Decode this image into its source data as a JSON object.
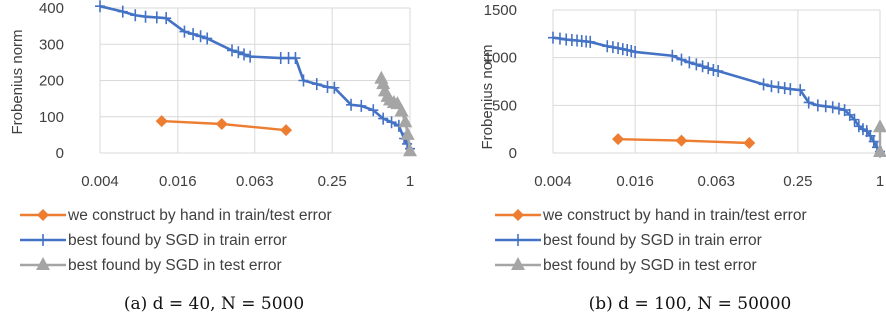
{
  "chart_data": [
    {
      "type": "line",
      "caption": "(a) d = 40, N = 5000",
      "xscale": "log2",
      "xticks": [
        "0.004",
        "0.016",
        "0.063",
        "0.25",
        "1"
      ],
      "xlim": [
        0.004,
        1
      ],
      "ylabel": "Frobenius norm",
      "ylim": [
        0,
        400
      ],
      "yticks": [
        "0",
        "100",
        "200",
        "300",
        "400"
      ],
      "grid": true,
      "legend": "bottom",
      "series": [
        {
          "name": "we construct by hand in train/test error",
          "color": "#ED7D31",
          "marker": "diamond",
          "x": [
            0.012,
            0.035,
            0.11
          ],
          "y": [
            88,
            80,
            63
          ]
        },
        {
          "name": "best found by SGD in train error",
          "color": "#4472C4",
          "marker": "plus",
          "x": [
            0.004,
            0.006,
            0.0075,
            0.009,
            0.011,
            0.013,
            0.018,
            0.021,
            0.024,
            0.027,
            0.042,
            0.047,
            0.052,
            0.058,
            0.1,
            0.115,
            0.13,
            0.15,
            0.19,
            0.23,
            0.26,
            0.35,
            0.42,
            0.52,
            0.62,
            0.72,
            0.82,
            0.9,
            0.95,
            1.0
          ],
          "y": [
            405,
            390,
            380,
            376,
            374,
            372,
            335,
            328,
            322,
            316,
            283,
            278,
            272,
            266,
            262,
            262,
            262,
            200,
            190,
            182,
            180,
            133,
            130,
            118,
            95,
            85,
            75,
            40,
            25,
            12
          ]
        },
        {
          "name": "best found by SGD in test error",
          "color": "#A5A5A5",
          "marker": "triangle",
          "x": [
            0.6,
            0.62,
            0.64,
            0.67,
            0.7,
            0.75,
            0.8,
            0.86,
            0.92,
            0.96,
            1.0
          ],
          "y": [
            205,
            190,
            170,
            155,
            145,
            138,
            135,
            115,
            85,
            50,
            5
          ]
        }
      ]
    },
    {
      "type": "line",
      "caption": "(b) d = 100, N = 50000",
      "xscale": "log2",
      "xticks": [
        "0.004",
        "0.016",
        "0.063",
        "0.25",
        "1"
      ],
      "xlim": [
        0.004,
        1
      ],
      "ylabel": "Frobenius norm",
      "ylim": [
        0,
        1500
      ],
      "yticks": [
        "0",
        "500",
        "1000",
        "1500"
      ],
      "grid": true,
      "legend": "bottom",
      "series": [
        {
          "name": "we construct by hand in train/test error",
          "color": "#ED7D31",
          "marker": "diamond",
          "x": [
            0.012,
            0.035,
            0.11
          ],
          "y": [
            145,
            130,
            105
          ]
        },
        {
          "name": "best found by SGD in train error",
          "color": "#4472C4",
          "marker": "plus",
          "x": [
            0.004,
            0.0045,
            0.005,
            0.0055,
            0.006,
            0.0065,
            0.007,
            0.0075,
            0.01,
            0.011,
            0.012,
            0.013,
            0.014,
            0.015,
            0.016,
            0.03,
            0.035,
            0.04,
            0.045,
            0.05,
            0.055,
            0.06,
            0.065,
            0.14,
            0.16,
            0.18,
            0.2,
            0.22,
            0.26,
            0.3,
            0.35,
            0.4,
            0.45,
            0.5,
            0.55,
            0.6,
            0.65,
            0.7,
            0.75,
            0.8,
            0.85,
            0.9,
            0.95,
            1.0
          ],
          "y": [
            1210,
            1200,
            1190,
            1185,
            1180,
            1175,
            1170,
            1165,
            1120,
            1110,
            1100,
            1090,
            1080,
            1070,
            1060,
            1020,
            980,
            950,
            930,
            910,
            890,
            870,
            860,
            720,
            700,
            690,
            680,
            670,
            660,
            530,
            500,
            490,
            480,
            465,
            450,
            400,
            350,
            280,
            250,
            230,
            180,
            120,
            60,
            15
          ]
        },
        {
          "name": "best found by SGD in test error",
          "color": "#A5A5A5",
          "marker": "triangle",
          "x": [
            1.0,
            1.0
          ],
          "y": [
            270,
            10
          ]
        }
      ]
    }
  ]
}
